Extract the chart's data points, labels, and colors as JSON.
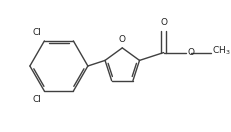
{
  "bg_color": "#ffffff",
  "line_color": "#404040",
  "text_color": "#202020",
  "line_width": 1.0,
  "font_size": 6.5,
  "figsize": [
    2.32,
    1.32
  ],
  "dpi": 100,
  "xlim": [
    0.0,
    1.0
  ],
  "ylim": [
    0.0,
    1.0
  ]
}
